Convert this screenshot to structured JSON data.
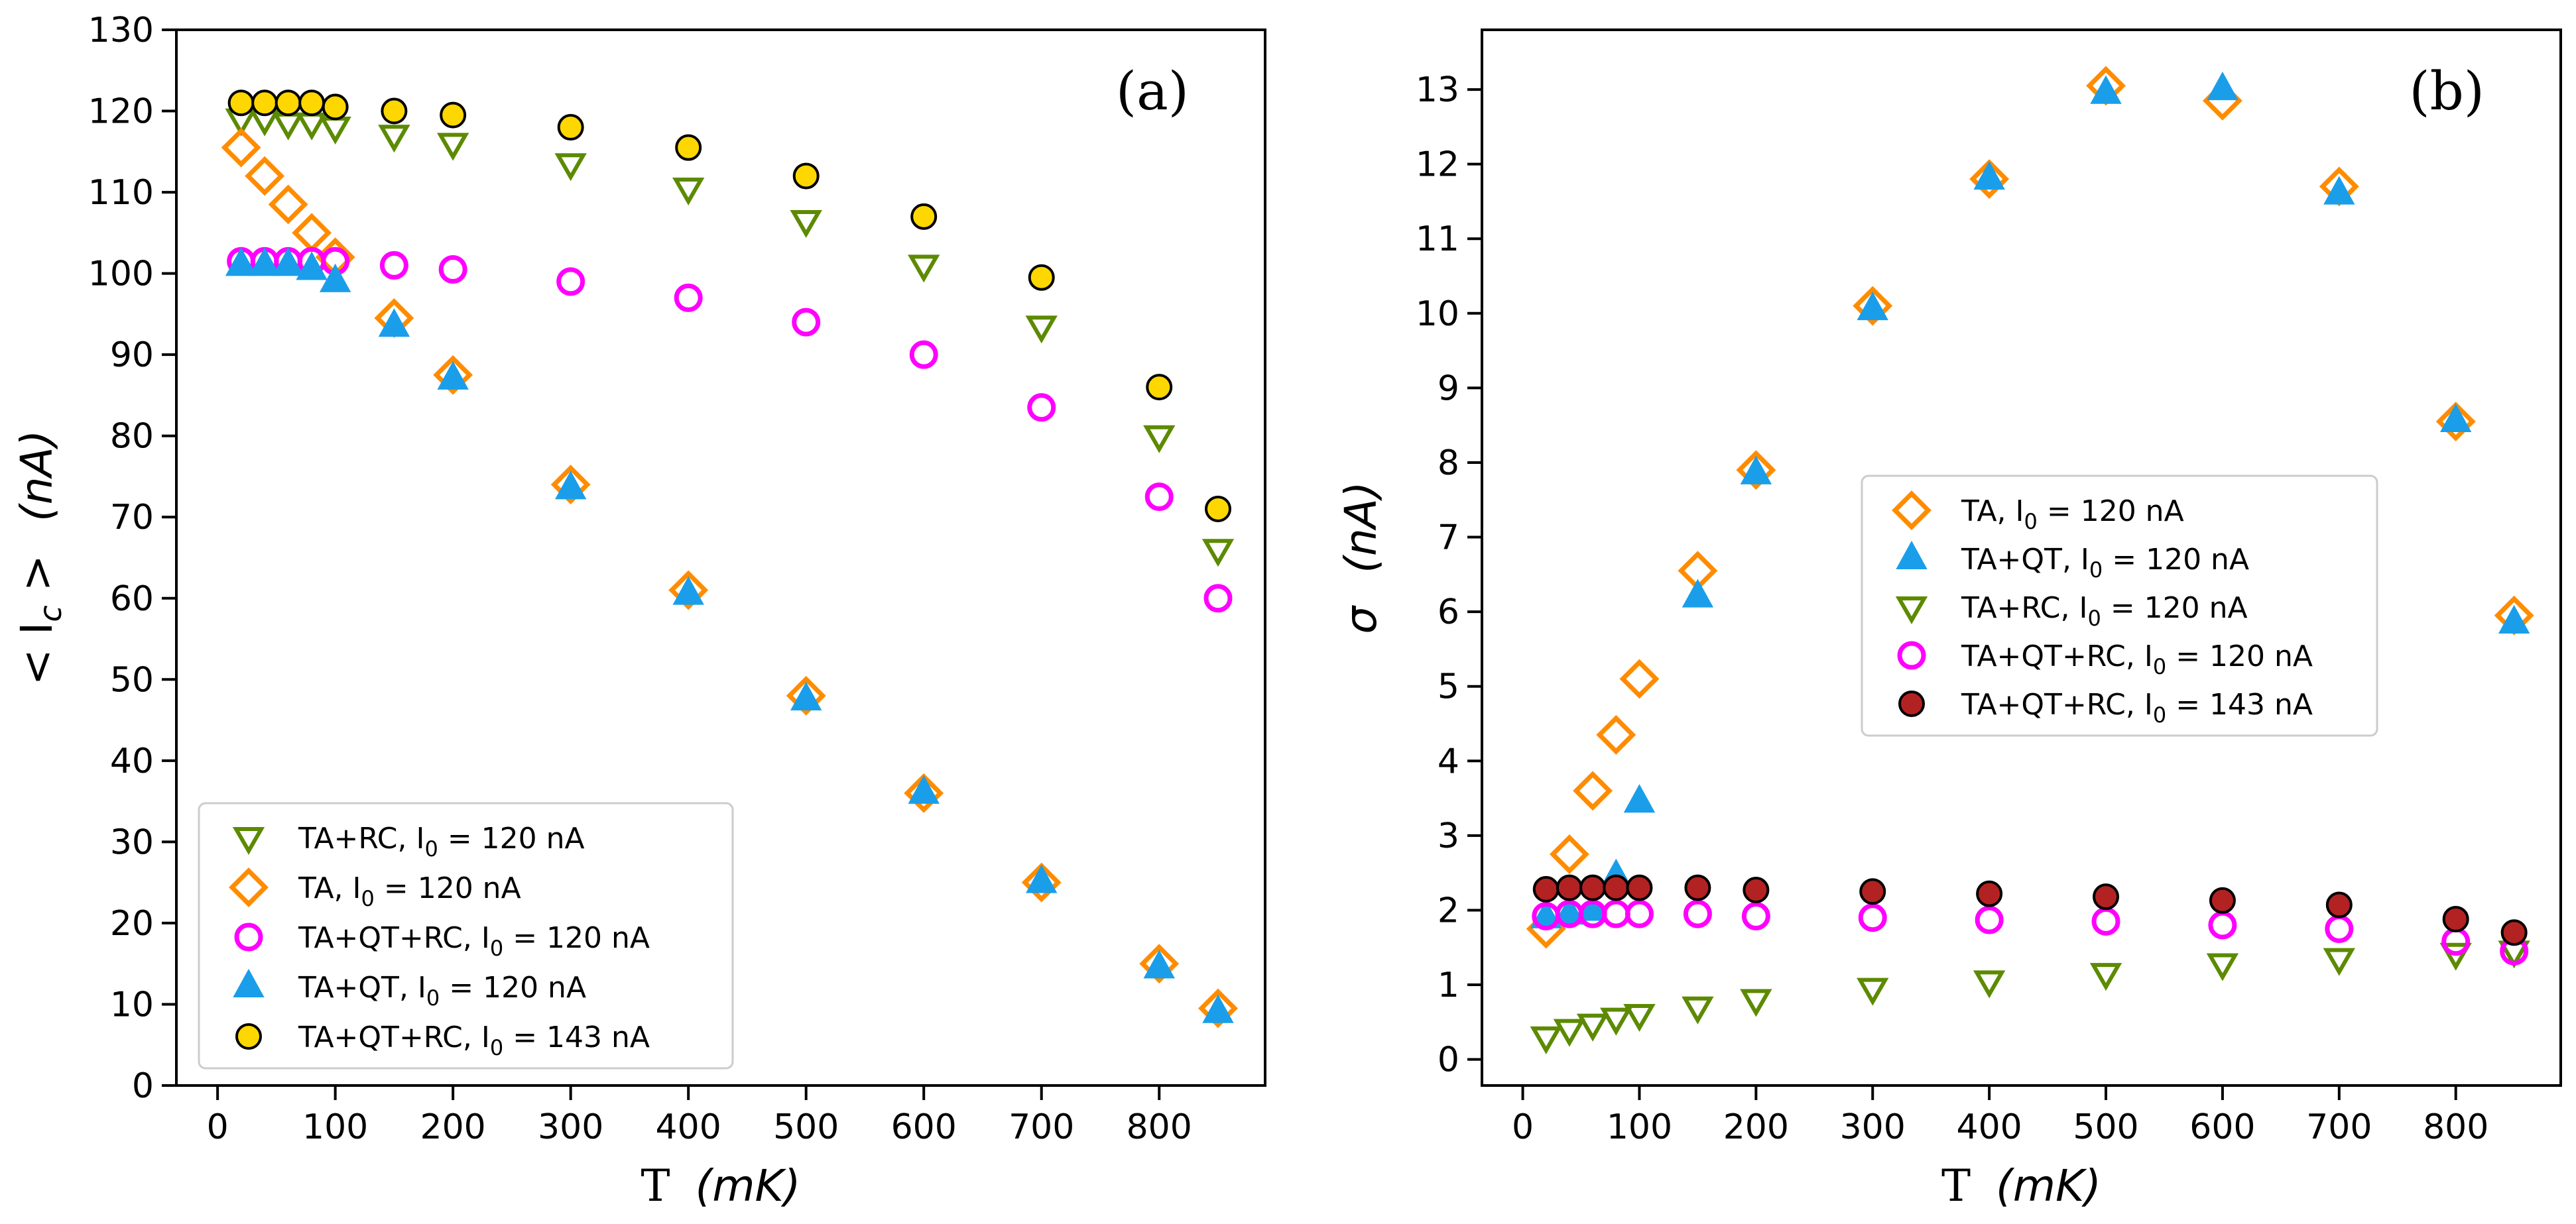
{
  "colors": {
    "TA": "#ff8c00",
    "TA+QT": "#1a9eea",
    "TA+RC": "#5c8a00",
    "TA+QT+RC_120": "#ff00ff",
    "TA+QT+RC_143_a": "#ffd700",
    "TA+QT+RC_143_b": "#b22222"
  },
  "chart_data": [
    {
      "type": "scatter",
      "panel_label": "(a)",
      "xlabel_prefix": "T",
      "xlabel_unit": "(mK)",
      "ylabel": "< I_c >  (nA)",
      "ylabel_main": "< I",
      "ylabel_sub": "c",
      "ylabel_close": " >",
      "ylabel_unit": "(nA)",
      "xlim": [
        -35,
        890
      ],
      "ylim": [
        0,
        130
      ],
      "xticks": [
        0,
        100,
        200,
        300,
        400,
        500,
        600,
        700,
        800
      ],
      "yticks": [
        0,
        10,
        20,
        30,
        40,
        50,
        60,
        70,
        80,
        90,
        100,
        110,
        120,
        130
      ],
      "legend_position": "lower-left",
      "x": [
        20,
        40,
        60,
        80,
        100,
        150,
        200,
        300,
        400,
        500,
        600,
        700,
        800,
        850
      ],
      "series": [
        {
          "name": "TA+RC, I_0 = 120 nA",
          "label_prefix": "TA+RC, I",
          "label_sub": "0",
          "label_suffix": " = 120 nA",
          "marker": "triangle-down",
          "color_key": "TA+RC",
          "values": [
            119,
            119,
            118.5,
            118.5,
            118,
            117,
            116,
            113.5,
            110.5,
            106.5,
            101,
            93.5,
            80,
            66
          ]
        },
        {
          "name": "TA, I_0 = 120 nA",
          "label_prefix": "TA, I",
          "label_sub": "0",
          "label_suffix": " = 120 nA",
          "marker": "diamond",
          "color_key": "TA",
          "values": [
            115.5,
            112,
            108.5,
            105,
            102,
            94.5,
            87.5,
            74,
            61,
            48,
            36,
            25,
            15,
            9.5
          ]
        },
        {
          "name": "TA+QT+RC, I_0 = 120 nA",
          "label_prefix": "TA+QT+RC, I",
          "label_sub": "0",
          "label_suffix": " = 120 nA",
          "marker": "circle-open",
          "color_key": "TA+QT+RC_120",
          "values": [
            101.5,
            101.5,
            101.5,
            101.5,
            101.5,
            101,
            100.5,
            99,
            97,
            94,
            90,
            83.5,
            72.5,
            60
          ]
        },
        {
          "name": "TA+QT, I_0 = 120 nA",
          "label_prefix": "TA+QT, I",
          "label_sub": "0",
          "label_suffix": " = 120 nA",
          "marker": "triangle-up",
          "color_key": "TA+QT",
          "values": [
            101,
            101,
            101,
            100.5,
            99,
            93.5,
            87,
            73.5,
            60.5,
            47.5,
            36,
            25,
            14.5,
            9
          ]
        },
        {
          "name": "TA+QT+RC, I_0 = 143 nA",
          "label_prefix": "TA+QT+RC, I",
          "label_sub": "0",
          "label_suffix": " = 143 nA",
          "marker": "circle-filled",
          "color_key": "TA+QT+RC_143_a",
          "values": [
            121,
            121,
            121,
            121,
            120.5,
            120,
            119.5,
            118,
            115.5,
            112,
            107,
            99.5,
            86,
            71
          ]
        }
      ]
    },
    {
      "type": "scatter",
      "panel_label": "(b)",
      "xlabel_prefix": "T",
      "xlabel_unit": "(mK)",
      "ylabel": "σ  (nA)",
      "ylabel_main": "σ",
      "ylabel_unit": "(nA)",
      "xlim": [
        -35,
        890
      ],
      "ylim": [
        -0.35,
        13.8
      ],
      "xticks": [
        0,
        100,
        200,
        300,
        400,
        500,
        600,
        700,
        800
      ],
      "yticks": [
        0,
        1,
        2,
        3,
        4,
        5,
        6,
        7,
        8,
        9,
        10,
        11,
        12,
        13
      ],
      "legend_position": "center-right",
      "x": [
        20,
        40,
        60,
        80,
        100,
        150,
        200,
        300,
        400,
        500,
        600,
        700,
        800,
        850
      ],
      "series": [
        {
          "name": "TA, I_0 = 120 nA",
          "label_prefix": "TA, I",
          "label_sub": "0",
          "label_suffix": " = 120 nA",
          "marker": "diamond",
          "color_key": "TA",
          "values": [
            1.75,
            2.75,
            3.6,
            4.35,
            5.1,
            6.55,
            7.9,
            10.1,
            11.8,
            13.05,
            12.85,
            11.7,
            8.55,
            5.95
          ]
        },
        {
          "name": "TA+QT, I_0 = 120 nA",
          "label_prefix": "TA+QT, I",
          "label_sub": "0",
          "label_suffix": " = 120 nA",
          "marker": "triangle-up",
          "color_key": "TA+QT",
          "values": [
            1.9,
            1.95,
            2.0,
            2.45,
            3.45,
            6.2,
            7.85,
            10.05,
            11.8,
            12.95,
            13.0,
            11.6,
            8.55,
            5.85
          ]
        },
        {
          "name": "TA+RC, I_0 = 120 nA",
          "label_prefix": "TA+RC, I",
          "label_sub": "0",
          "label_suffix": " = 120 nA",
          "marker": "triangle-down",
          "color_key": "TA+RC",
          "values": [
            0.3,
            0.4,
            0.47,
            0.55,
            0.6,
            0.7,
            0.8,
            0.95,
            1.05,
            1.15,
            1.28,
            1.35,
            1.42,
            1.45
          ]
        },
        {
          "name": "TA+QT+RC, I_0 = 120 nA",
          "label_prefix": "TA+QT+RC, I",
          "label_sub": "0",
          "label_suffix": " = 120 nA",
          "marker": "circle-open",
          "color_key": "TA+QT+RC_120",
          "values": [
            1.92,
            1.95,
            1.95,
            1.95,
            1.95,
            1.95,
            1.92,
            1.9,
            1.87,
            1.85,
            1.8,
            1.75,
            1.58,
            1.45
          ]
        },
        {
          "name": "TA+QT+RC, I_0 = 143 nA",
          "label_prefix": "TA+QT+RC, I",
          "label_sub": "0",
          "label_suffix": " = 143 nA",
          "marker": "circle-filled",
          "color_key": "TA+QT+RC_143_b",
          "values": [
            2.28,
            2.3,
            2.3,
            2.3,
            2.3,
            2.3,
            2.27,
            2.25,
            2.22,
            2.18,
            2.13,
            2.07,
            1.88,
            1.7
          ]
        }
      ]
    }
  ]
}
